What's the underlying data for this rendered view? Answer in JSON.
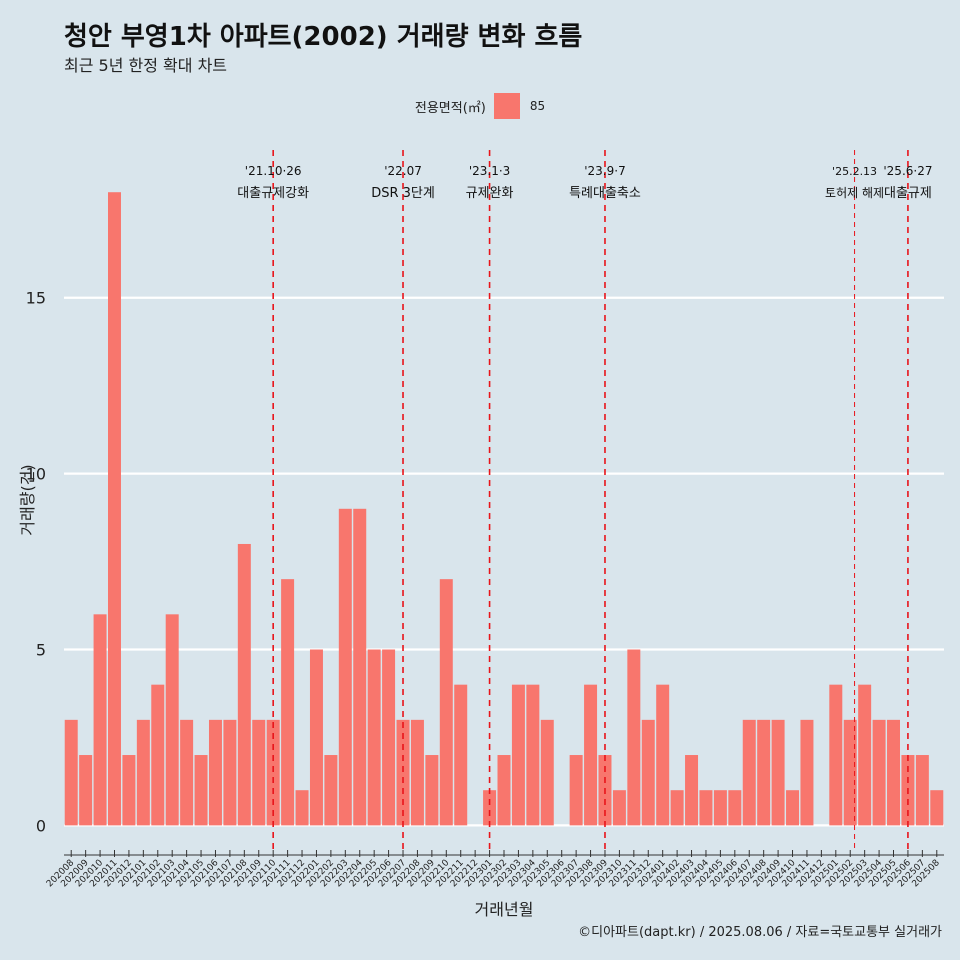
{
  "title": "청안 부영1차 아파트(2002) 거래량 변화 흐름",
  "subtitle": "최근 5년 한정 확대 차트",
  "legend": {
    "title": "전용면적(㎡)",
    "item": "85"
  },
  "caption": "©디아파트(dapt.kr) / 2025.08.06 / 자료=국토교통부 실거래가",
  "colors": {
    "background": "#d9e5ec",
    "bar": "#F8766D",
    "grid": "#ffffff",
    "event_line": "#e8141a"
  },
  "chart_data": {
    "type": "bar",
    "xlabel": "거래년월",
    "ylabel": "거래량(건)",
    "ylim": [
      -0.7,
      19.2
    ],
    "yticks": [
      0,
      5,
      10,
      15
    ],
    "grid": true,
    "legend_position": "top",
    "series": [
      {
        "name": "85"
      }
    ],
    "categories": [
      "202008",
      "202009",
      "202010",
      "202011",
      "202012",
      "202101",
      "202102",
      "202103",
      "202104",
      "202105",
      "202106",
      "202107",
      "202108",
      "202109",
      "202110",
      "202111",
      "202112",
      "202201",
      "202202",
      "202203",
      "202204",
      "202205",
      "202206",
      "202207",
      "202208",
      "202209",
      "202210",
      "202211",
      "202212",
      "202301",
      "202302",
      "202303",
      "202304",
      "202305",
      "202306",
      "202307",
      "202308",
      "202309",
      "202310",
      "202311",
      "202312",
      "202401",
      "202402",
      "202403",
      "202404",
      "202405",
      "202406",
      "202407",
      "202408",
      "202409",
      "202410",
      "202411",
      "202412",
      "202501",
      "202502",
      "202503",
      "202504",
      "202505",
      "202506",
      "202507",
      "202508"
    ],
    "values": [
      3,
      2,
      6,
      18,
      2,
      3,
      4,
      6,
      3,
      2,
      3,
      3,
      8,
      3,
      3,
      7,
      1,
      5,
      2,
      9,
      9,
      5,
      5,
      3,
      3,
      2,
      7,
      4,
      0,
      1,
      2,
      4,
      4,
      3,
      0,
      2,
      4,
      2,
      1,
      5,
      3,
      4,
      1,
      2,
      1,
      1,
      1,
      3,
      3,
      3,
      1,
      3,
      0,
      4,
      3,
      4,
      3,
      3,
      2,
      2,
      1
    ],
    "annotations": [
      {
        "at": "202110",
        "date": "'21.10·26",
        "label": "대출규제강화",
        "style": "dashed"
      },
      {
        "at": "202207",
        "date": "'22.07",
        "label": "DSR 3단계",
        "style": "dashed"
      },
      {
        "at": "202301",
        "date": "'23.1·3",
        "label": "규제완화",
        "style": "dashed"
      },
      {
        "at": "202309",
        "date": "'23.9·7",
        "label": "특례대출축소",
        "style": "dashed"
      },
      {
        "at": "202502.3",
        "date": "'25.2.13",
        "label": "토허제 해제",
        "style": "dashed-thin"
      },
      {
        "at": "202506",
        "date": "'25.6·27",
        "label": "대출규제",
        "style": "dashed"
      }
    ]
  }
}
